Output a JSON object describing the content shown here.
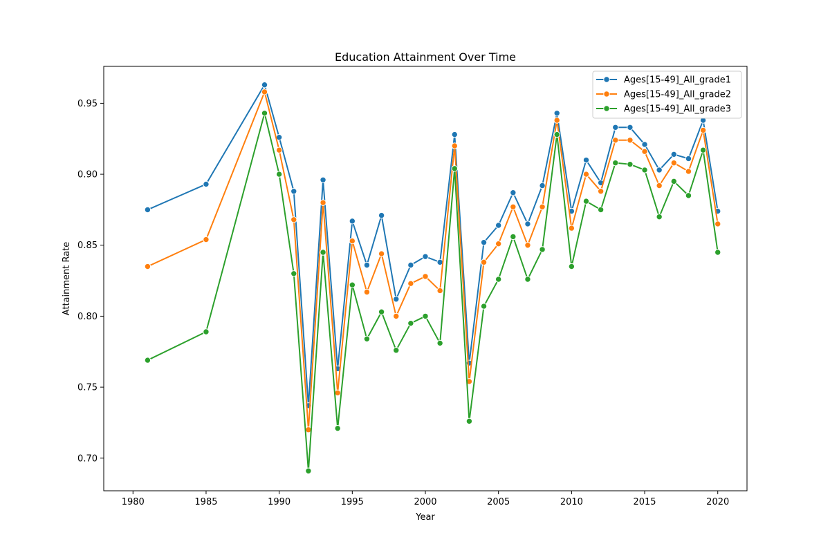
{
  "chart_data": {
    "type": "line",
    "title": "Education Attainment Over Time",
    "xlabel": "Year",
    "ylabel": "Attainment Rate",
    "xlim": [
      1978.0,
      2022.0
    ],
    "ylim": [
      0.677,
      0.976
    ],
    "xticks": [
      1980,
      1985,
      1990,
      1995,
      2000,
      2005,
      2010,
      2015,
      2020
    ],
    "yticks": [
      0.7,
      0.75,
      0.8,
      0.85,
      0.9,
      0.95
    ],
    "ytick_labels": [
      "0.70",
      "0.75",
      "0.80",
      "0.85",
      "0.90",
      "0.95"
    ],
    "grid": false,
    "legend_position": "top-right",
    "marker": "circle",
    "x": [
      1981,
      1985,
      1989,
      1990,
      1991,
      1992,
      1993,
      1994,
      1995,
      1996,
      1997,
      1998,
      1999,
      2000,
      2001,
      2002,
      2003,
      2004,
      2005,
      2006,
      2007,
      2008,
      2009,
      2010,
      2011,
      2012,
      2013,
      2014,
      2015,
      2016,
      2017,
      2018,
      2019,
      2020
    ],
    "series": [
      {
        "name": "Ages[15-49]_All_grade1",
        "color": "#1f77b4",
        "values": [
          0.875,
          0.893,
          0.963,
          0.926,
          0.888,
          0.737,
          0.896,
          0.763,
          0.867,
          0.836,
          0.871,
          0.812,
          0.836,
          0.842,
          0.838,
          0.928,
          0.767,
          0.852,
          0.864,
          0.887,
          0.865,
          0.892,
          0.943,
          0.874,
          0.91,
          0.894,
          0.933,
          0.933,
          0.921,
          0.903,
          0.914,
          0.911,
          0.938,
          0.874
        ]
      },
      {
        "name": "Ages[15-49]_All_grade2",
        "color": "#ff7f0e",
        "values": [
          0.835,
          0.854,
          0.958,
          0.917,
          0.868,
          0.72,
          0.88,
          0.746,
          0.853,
          0.817,
          0.844,
          0.8,
          0.823,
          0.828,
          0.818,
          0.92,
          0.754,
          0.838,
          0.851,
          0.877,
          0.85,
          0.877,
          0.938,
          0.862,
          0.9,
          0.888,
          0.924,
          0.924,
          0.916,
          0.892,
          0.908,
          0.902,
          0.931,
          0.865
        ]
      },
      {
        "name": "Ages[15-49]_All_grade3",
        "color": "#2ca02c",
        "values": [
          0.769,
          0.789,
          0.943,
          0.9,
          0.83,
          0.691,
          0.845,
          0.721,
          0.822,
          0.784,
          0.803,
          0.776,
          0.795,
          0.8,
          0.781,
          0.904,
          0.726,
          0.807,
          0.826,
          0.856,
          0.826,
          0.847,
          0.928,
          0.835,
          0.881,
          0.875,
          0.908,
          0.907,
          0.903,
          0.87,
          0.895,
          0.885,
          0.917,
          0.845
        ]
      }
    ]
  }
}
